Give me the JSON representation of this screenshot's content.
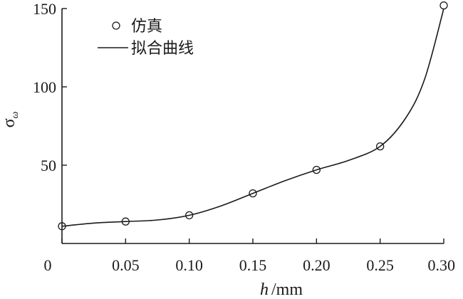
{
  "chart_data": {
    "type": "scatter",
    "xlabel": {
      "var": "h",
      "unit": "/mm"
    },
    "ylabel": {
      "var": "σ",
      "sub": "ω"
    },
    "xlim": [
      0,
      0.3
    ],
    "ylim": [
      0,
      150
    ],
    "x_ticks": [
      {
        "value": 0,
        "label": "0"
      },
      {
        "value": 0.05,
        "label": "0.05"
      },
      {
        "value": 0.1,
        "label": "0.10"
      },
      {
        "value": 0.15,
        "label": "0.15"
      },
      {
        "value": 0.2,
        "label": "0.20"
      },
      {
        "value": 0.25,
        "label": "0.25"
      },
      {
        "value": 0.3,
        "label": "0.30"
      }
    ],
    "y_ticks": [
      {
        "value": 50,
        "label": "50"
      },
      {
        "value": 100,
        "label": "100"
      },
      {
        "value": 150,
        "label": "150"
      }
    ],
    "grid": false,
    "legend_position": "top-left",
    "series": [
      {
        "name": "仿真",
        "kind": "markers",
        "marker": "open-circle",
        "x": [
          0.0,
          0.05,
          0.1,
          0.15,
          0.2,
          0.25,
          0.3
        ],
        "y": [
          11,
          14,
          18,
          32,
          47,
          62,
          152
        ]
      },
      {
        "name": "拟合曲线",
        "kind": "line",
        "x": [
          0.0,
          0.025,
          0.05,
          0.075,
          0.1,
          0.125,
          0.15,
          0.175,
          0.2,
          0.225,
          0.25,
          0.27,
          0.285,
          0.3
        ],
        "y": [
          11,
          13,
          14,
          15,
          18,
          24,
          32,
          40,
          47,
          53,
          62,
          80,
          105,
          150
        ]
      }
    ],
    "colors": {
      "axis": "#1a1a1a",
      "series": "#1a1a1a"
    }
  }
}
